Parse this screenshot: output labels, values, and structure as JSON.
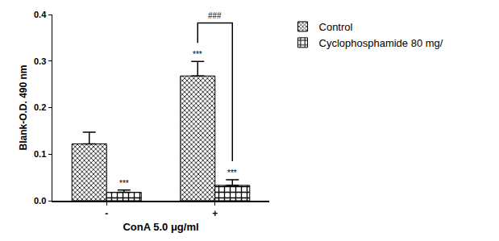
{
  "chart_data": {
    "type": "bar",
    "x_label": "ConA 5.0 μg/ml",
    "y_label": "Blank-O.D. 490 nm",
    "categories": [
      "-",
      "+"
    ],
    "series": [
      {
        "name": "Control",
        "color": "#000000",
        "values": [
          0.122,
          0.268
        ],
        "errors": [
          0.025,
          0.031
        ]
      },
      {
        "name": "Cyclophosphamide 80 mg/",
        "color": "#000000",
        "values": [
          0.018,
          0.033
        ],
        "errors": [
          0.005,
          0.012
        ]
      }
    ],
    "ylim": [
      0,
      0.4
    ],
    "yticks": [
      {
        "value": 0,
        "label": "0.0"
      },
      {
        "value": 0.1,
        "label": "0.1"
      },
      {
        "value": 0.2,
        "label": "0.2"
      },
      {
        "value": 0.3,
        "label": "0.3"
      },
      {
        "value": 0.4,
        "label": "0.4"
      }
    ],
    "grid": false,
    "legend": "top right",
    "annotations": [
      {
        "text": "***",
        "series": "Cyclophosphamide 80 mg/",
        "category": "-"
      },
      {
        "text": "***",
        "series": "Control",
        "category": "+"
      },
      {
        "text": "***",
        "series": "Cyclophosphamide 80 mg/",
        "category": "+"
      }
    ],
    "brackets": [
      {
        "text": "###",
        "category": "+",
        "from": "Control",
        "to": "Cyclophosphamide 80 mg/"
      }
    ]
  }
}
